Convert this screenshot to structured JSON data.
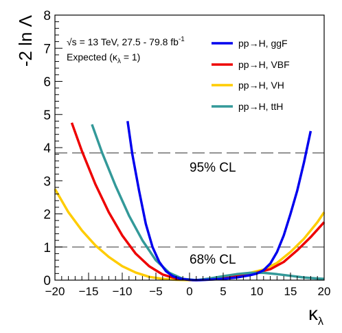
{
  "chart_data": {
    "type": "line",
    "ylabel": "-2 ln Λ",
    "xlabel_main": "κ",
    "xlabel_sub": "λ",
    "xlim": [
      -20,
      20
    ],
    "ylim": [
      0,
      8
    ],
    "xticks": [
      -20,
      -15,
      -10,
      -5,
      0,
      5,
      10,
      15,
      20
    ],
    "yticks": [
      0,
      1,
      2,
      3,
      4,
      5,
      6,
      7,
      8
    ],
    "info": {
      "energy_pre": "√s = 13 TeV, 27.5 - 79.8 fb",
      "energy_sup": "-1",
      "expected_pre": "Expected (κ",
      "expected_sub": "λ",
      "expected_post": " = 1)"
    },
    "cl_lines": [
      {
        "label": "95% CL",
        "y": 3.84
      },
      {
        "label": "68% CL",
        "y": 1.0
      }
    ],
    "legend_position": "top-right",
    "series": [
      {
        "name": "pp→H, ggF",
        "color": "#0000ee",
        "points": [
          [
            -9.2,
            4.8
          ],
          [
            -8.5,
            3.8
          ],
          [
            -7.5,
            2.7
          ],
          [
            -6.5,
            1.7
          ],
          [
            -5.5,
            1.0
          ],
          [
            -4.5,
            0.55
          ],
          [
            -3.5,
            0.27
          ],
          [
            -2.5,
            0.12
          ],
          [
            -1.5,
            0.05
          ],
          [
            -0.5,
            0.02
          ],
          [
            0.5,
            0.0
          ],
          [
            1.5,
            0.0
          ],
          [
            2.5,
            0.01
          ],
          [
            3.5,
            0.02
          ],
          [
            5,
            0.04
          ],
          [
            7,
            0.08
          ],
          [
            9,
            0.15
          ],
          [
            10,
            0.2
          ],
          [
            11,
            0.3
          ],
          [
            12,
            0.5
          ],
          [
            13,
            0.85
          ],
          [
            14,
            1.35
          ],
          [
            15,
            2.0
          ],
          [
            16,
            2.7
          ],
          [
            17,
            3.55
          ],
          [
            18,
            4.5
          ]
        ]
      },
      {
        "name": "pp→H, VBF",
        "color": "#ee0000",
        "points": [
          [
            -17.5,
            4.75
          ],
          [
            -16,
            3.9
          ],
          [
            -14,
            2.9
          ],
          [
            -12,
            2.05
          ],
          [
            -10,
            1.35
          ],
          [
            -8,
            0.8
          ],
          [
            -6,
            0.42
          ],
          [
            -4,
            0.17
          ],
          [
            -2,
            0.05
          ],
          [
            0,
            0.01
          ],
          [
            1,
            0.0
          ],
          [
            2,
            0.01
          ],
          [
            4,
            0.03
          ],
          [
            6,
            0.08
          ],
          [
            8,
            0.15
          ],
          [
            10,
            0.23
          ],
          [
            12,
            0.33
          ],
          [
            14,
            0.55
          ],
          [
            16,
            0.9
          ],
          [
            18,
            1.3
          ],
          [
            20,
            1.75
          ]
        ]
      },
      {
        "name": "pp→H, VH",
        "color": "#ffcc00",
        "points": [
          [
            -20,
            2.75
          ],
          [
            -18,
            2.05
          ],
          [
            -16,
            1.5
          ],
          [
            -14,
            1.05
          ],
          [
            -12,
            0.7
          ],
          [
            -10,
            0.42
          ],
          [
            -8,
            0.23
          ],
          [
            -6,
            0.1
          ],
          [
            -4,
            0.04
          ],
          [
            -2,
            0.01
          ],
          [
            0,
            0.0
          ],
          [
            1,
            0.0
          ],
          [
            3,
            0.03
          ],
          [
            5,
            0.08
          ],
          [
            7,
            0.15
          ],
          [
            9,
            0.22
          ],
          [
            11,
            0.32
          ],
          [
            13,
            0.52
          ],
          [
            15,
            0.85
          ],
          [
            17,
            1.25
          ],
          [
            19,
            1.75
          ],
          [
            20,
            2.05
          ]
        ]
      },
      {
        "name": "pp→H, ttH",
        "color": "#339999",
        "points": [
          [
            -14.5,
            4.7
          ],
          [
            -13,
            3.85
          ],
          [
            -11,
            2.85
          ],
          [
            -9,
            1.95
          ],
          [
            -7,
            1.2
          ],
          [
            -5,
            0.6
          ],
          [
            -3,
            0.22
          ],
          [
            -1,
            0.04
          ],
          [
            1,
            0.0
          ],
          [
            3,
            0.05
          ],
          [
            5,
            0.12
          ],
          [
            7,
            0.18
          ],
          [
            9,
            0.22
          ],
          [
            11,
            0.22
          ],
          [
            13,
            0.18
          ],
          [
            15,
            0.13
          ],
          [
            17,
            0.08
          ],
          [
            19,
            0.05
          ],
          [
            20,
            0.04
          ]
        ]
      }
    ]
  }
}
